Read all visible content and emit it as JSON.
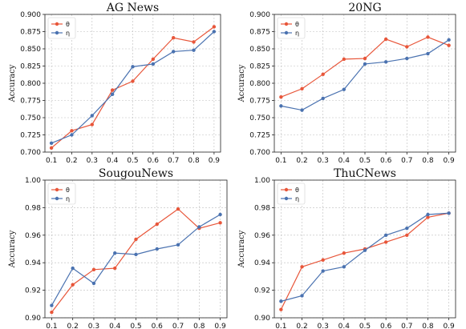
{
  "colors": {
    "theta": "#e8563a",
    "eta": "#4a72b0"
  },
  "chart_data": [
    {
      "type": "line",
      "title": "AG News",
      "ylabel": "Accuracy",
      "x": [
        0.1,
        0.2,
        0.3,
        0.4,
        0.5,
        0.6,
        0.7,
        0.8,
        0.9
      ],
      "x_ticks": [
        "0.1",
        "0.2",
        "0.3",
        "0.4",
        "0.5",
        "0.6",
        "0.7",
        "0.8",
        "0.9"
      ],
      "ylim": [
        0.7,
        0.9
      ],
      "y_ticks": [
        "0.700",
        "0.725",
        "0.750",
        "0.775",
        "0.800",
        "0.825",
        "0.850",
        "0.875",
        "0.900"
      ],
      "grid": true,
      "legend": "top-left",
      "series": [
        {
          "name": "θ",
          "values": [
            0.706,
            0.731,
            0.74,
            0.79,
            0.803,
            0.835,
            0.866,
            0.86,
            0.882
          ]
        },
        {
          "name": "η",
          "values": [
            0.713,
            0.725,
            0.753,
            0.784,
            0.824,
            0.828,
            0.846,
            0.848,
            0.875
          ]
        }
      ]
    },
    {
      "type": "line",
      "title": "20NG",
      "ylabel": "Accuracy",
      "x": [
        0.1,
        0.2,
        0.3,
        0.4,
        0.5,
        0.6,
        0.7,
        0.8,
        0.9
      ],
      "x_ticks": [
        "0.1",
        "0.2",
        "0.3",
        "0.4",
        "0.5",
        "0.6",
        "0.7",
        "0.8",
        "0.9"
      ],
      "ylim": [
        0.7,
        0.9
      ],
      "y_ticks": [
        "0.700",
        "0.725",
        "0.750",
        "0.775",
        "0.800",
        "0.825",
        "0.850",
        "0.875",
        "0.900"
      ],
      "grid": true,
      "legend": "top-left",
      "series": [
        {
          "name": "θ",
          "values": [
            0.78,
            0.792,
            0.813,
            0.835,
            0.836,
            0.864,
            0.853,
            0.867,
            0.855
          ]
        },
        {
          "name": "η",
          "values": [
            0.767,
            0.761,
            0.778,
            0.791,
            0.828,
            0.831,
            0.836,
            0.843,
            0.863
          ]
        }
      ]
    },
    {
      "type": "line",
      "title": "SougouNews",
      "ylabel": "Accuracy",
      "x": [
        0.1,
        0.2,
        0.3,
        0.4,
        0.5,
        0.6,
        0.7,
        0.8,
        0.9
      ],
      "x_ticks": [
        "0.1",
        "0.2",
        "0.3",
        "0.4",
        "0.5",
        "0.6",
        "0.7",
        "0.8",
        "0.9"
      ],
      "ylim": [
        0.9,
        1.0
      ],
      "y_ticks": [
        "0.90",
        "0.92",
        "0.94",
        "0.96",
        "0.98",
        "1.00"
      ],
      "grid": true,
      "legend": "top-left",
      "series": [
        {
          "name": "θ",
          "values": [
            0.904,
            0.924,
            0.935,
            0.936,
            0.957,
            0.968,
            0.979,
            0.965,
            0.969
          ]
        },
        {
          "name": "η",
          "values": [
            0.909,
            0.936,
            0.925,
            0.947,
            0.946,
            0.95,
            0.953,
            0.966,
            0.975
          ]
        }
      ]
    },
    {
      "type": "line",
      "title": "ThuCNews",
      "ylabel": "Accuracy",
      "x": [
        0.1,
        0.2,
        0.3,
        0.4,
        0.5,
        0.6,
        0.7,
        0.8,
        0.9
      ],
      "x_ticks": [
        "0.1",
        "0.2",
        "0.3",
        "0.4",
        "0.5",
        "0.6",
        "0.7",
        "0.8",
        "0.9"
      ],
      "ylim": [
        0.9,
        1.0
      ],
      "y_ticks": [
        "0.90",
        "0.92",
        "0.94",
        "0.96",
        "0.98",
        "1.00"
      ],
      "grid": true,
      "legend": "top-left",
      "series": [
        {
          "name": "θ",
          "values": [
            0.906,
            0.937,
            0.942,
            0.947,
            0.95,
            0.955,
            0.96,
            0.973,
            0.976
          ]
        },
        {
          "name": "η",
          "values": [
            0.912,
            0.916,
            0.934,
            0.937,
            0.949,
            0.96,
            0.965,
            0.975,
            0.976
          ]
        }
      ]
    }
  ]
}
